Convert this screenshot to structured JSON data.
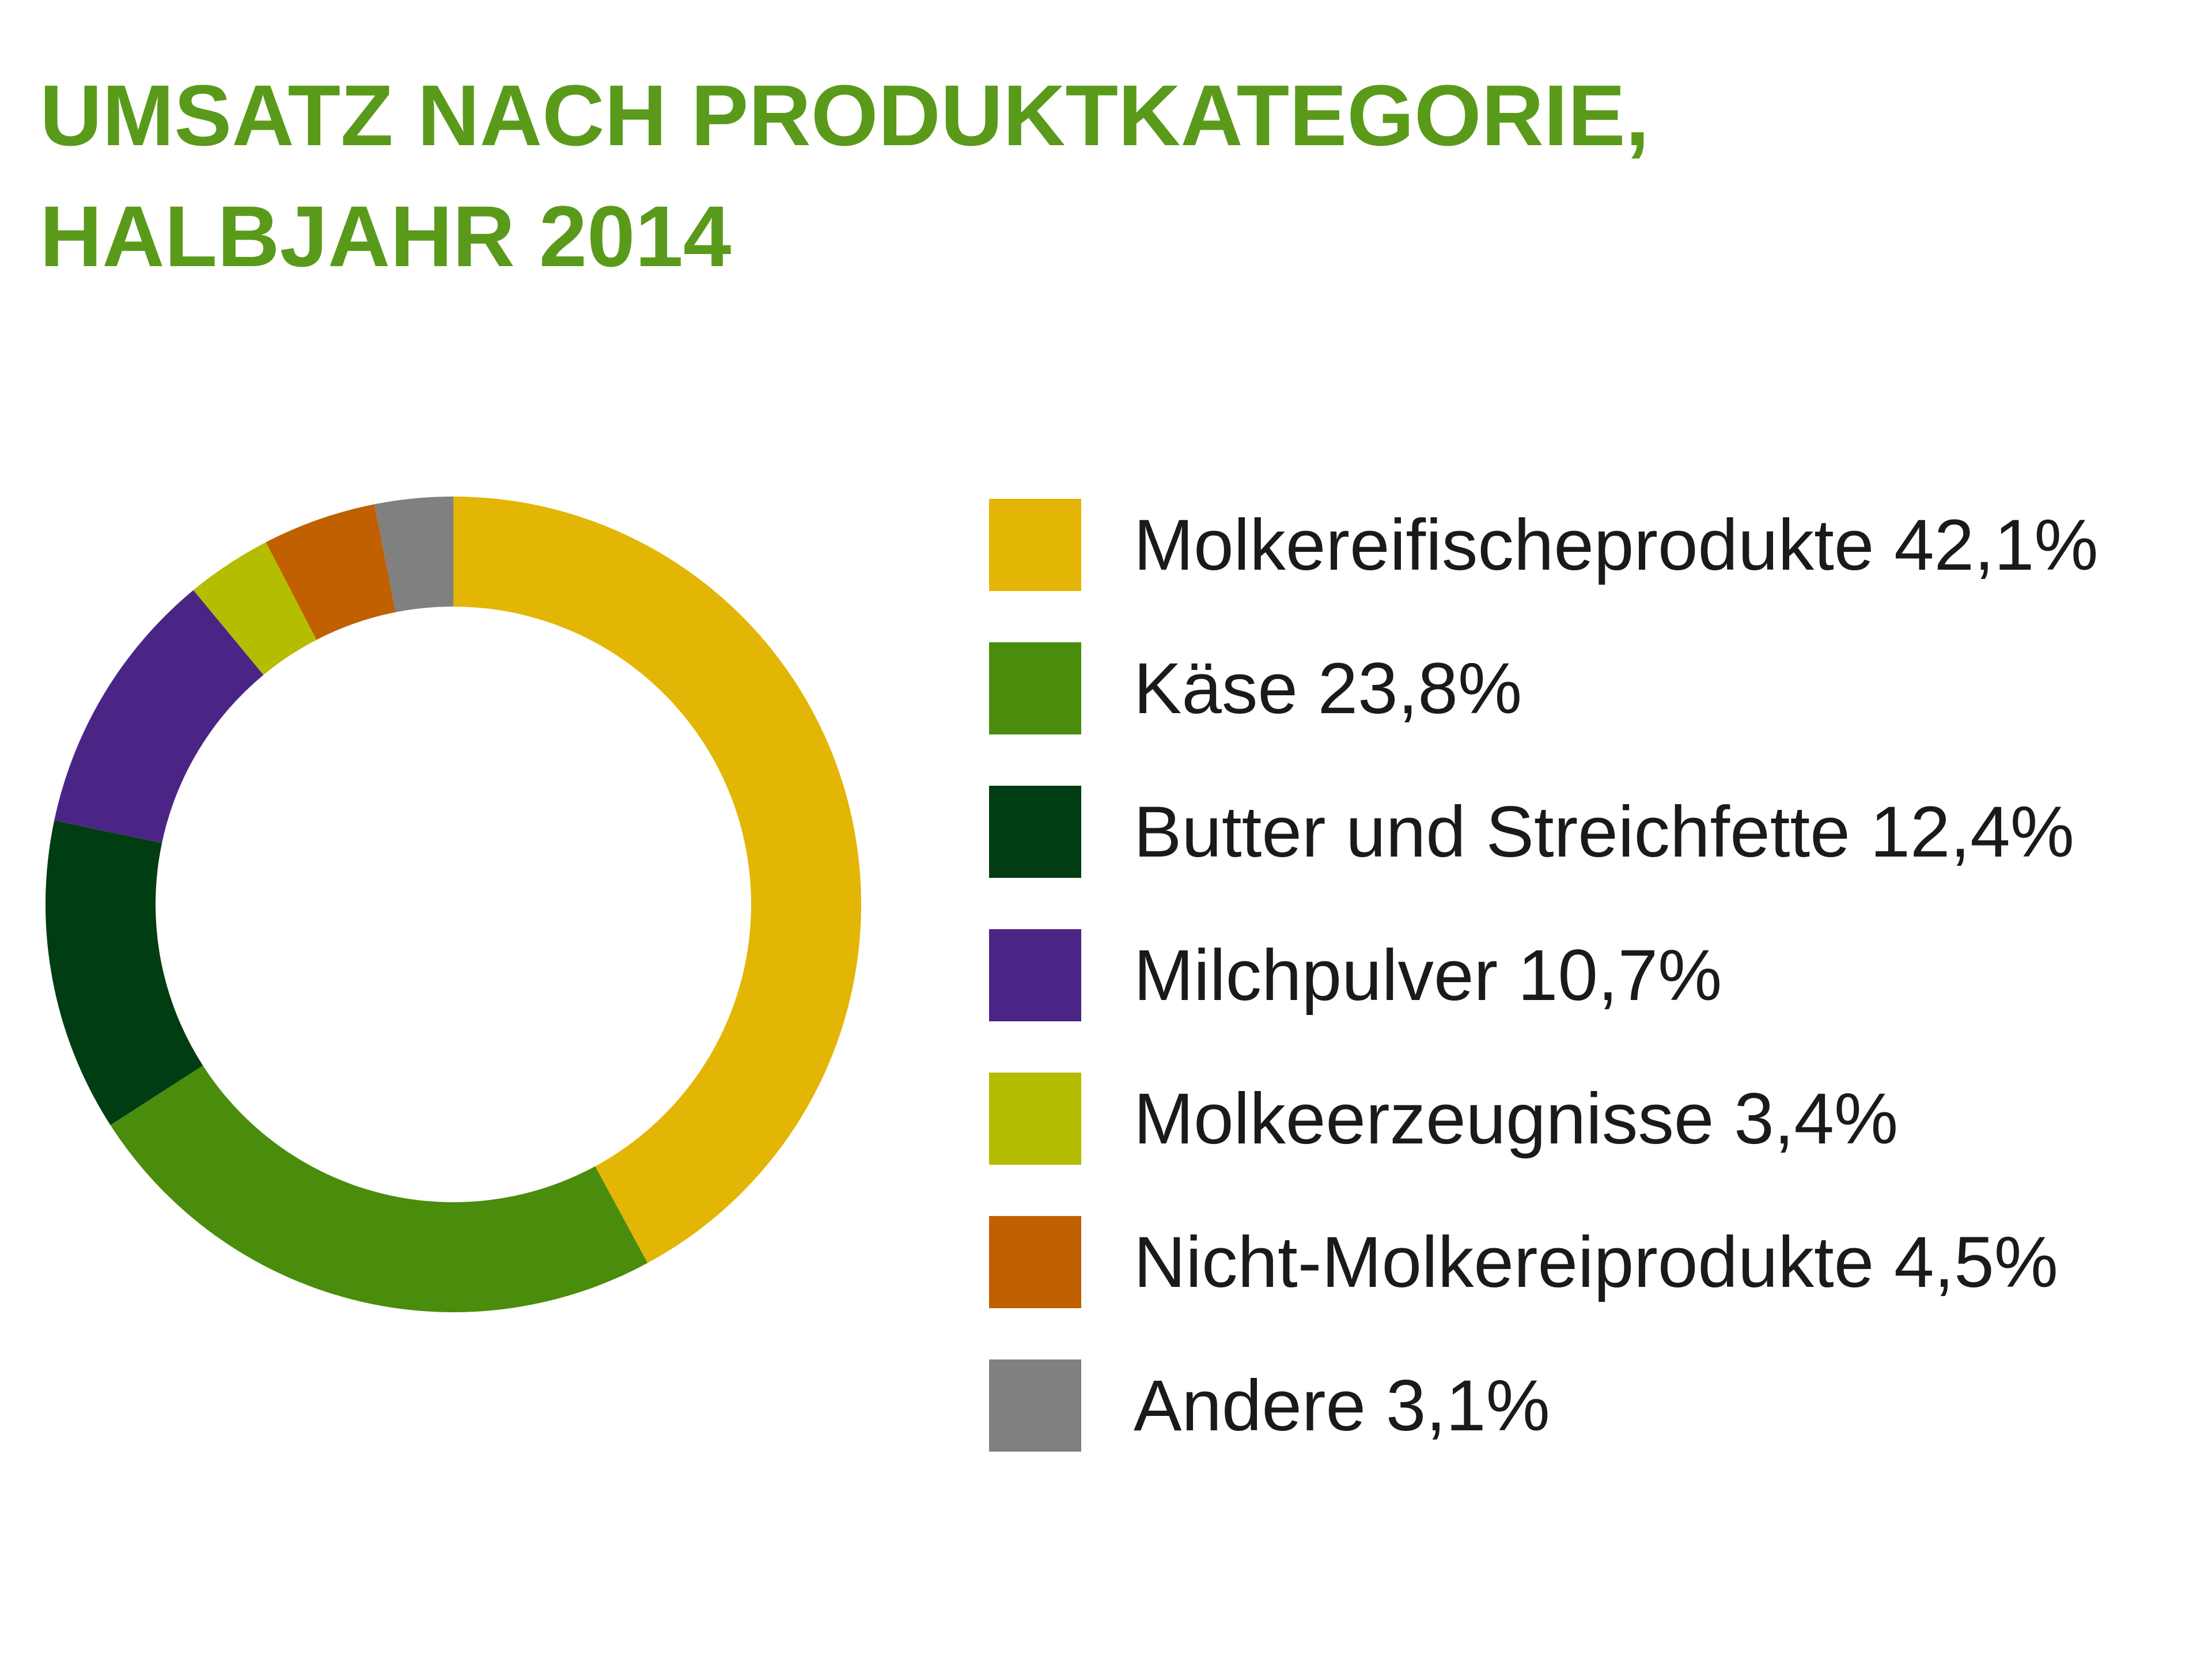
{
  "chart_data": {
    "type": "pie",
    "title": "UMSATZ NACH PRODUKTKATEGORIE, HALBJAHR 2014",
    "categories": [
      "Molkereifischeprodukte",
      "Käse",
      "Butter und Streichfette",
      "Milchpulver",
      "Molkeerzeugnisse",
      "Nicht-Molkereiprodukte",
      "Andere"
    ],
    "values": [
      42.1,
      23.8,
      12.4,
      10.7,
      3.4,
      4.5,
      3.1
    ],
    "value_labels": [
      "42,1%",
      "23,8%",
      "12,4%",
      "10,7%",
      "3,4%",
      "4,5%",
      "3,1%"
    ],
    "colors": [
      "#e3b505",
      "#4a8c0c",
      "#003d12",
      "#4b2585",
      "#b5bd00",
      "#c06000",
      "#808080"
    ],
    "donut": true,
    "legend": "right"
  }
}
